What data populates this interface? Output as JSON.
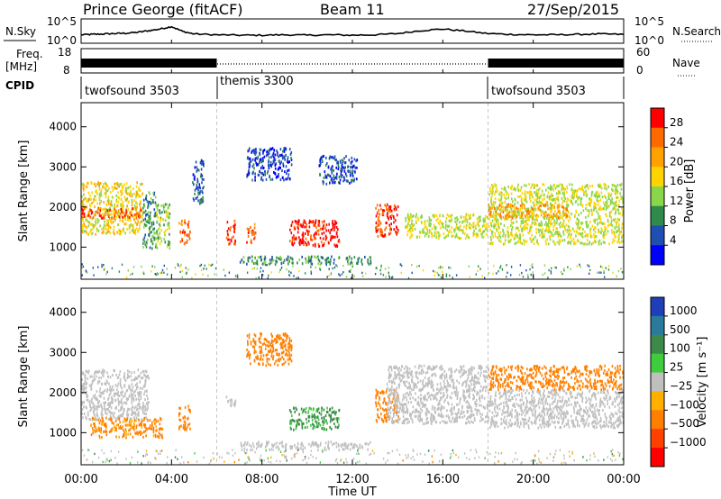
{
  "header": {
    "station": "Prince George (fitACF)",
    "beam": "Beam 11",
    "date": "27/Sep/2015"
  },
  "noise_panel": {
    "left_label": "N.Sky",
    "right_label": "N.Search",
    "left_ticks": [
      "10^5",
      "10^0"
    ],
    "right_ticks": [
      "10^5",
      "10^0"
    ]
  },
  "freq_panel": {
    "left_label_1": "Freq.",
    "left_label_2": "[MHz]",
    "left_ticks": [
      "18",
      "8"
    ],
    "right_label": "Nave",
    "right_ticks": [
      "60",
      "0"
    ]
  },
  "cpid_panel": {
    "label": "CPID",
    "segments": [
      {
        "name": "twofsound 3503",
        "start": 0,
        "end": 6
      },
      {
        "name": "themis 3300",
        "start": 6,
        "end": 18
      },
      {
        "name": "twofsound 3503",
        "start": 18,
        "end": 24
      }
    ]
  },
  "power_colorbar": {
    "label": "Power [dB]",
    "ticks": [
      "28",
      "24",
      "20",
      "16",
      "12",
      "8",
      "4"
    ],
    "colors": [
      "#ff0000",
      "#ff6a00",
      "#ffa200",
      "#ffd400",
      "#8ad64a",
      "#2f8a4e",
      "#1f4fb0",
      "#0000ff"
    ]
  },
  "velocity_colorbar": {
    "label": "Velocity [m s⁻¹]",
    "ticks": [
      "1000",
      "500",
      "100",
      "25",
      "−25",
      "−100",
      "−500",
      "−1000"
    ],
    "colors": [
      "#1f3fb8",
      "#2a7a9c",
      "#3c8a4a",
      "#3fcc3f",
      "#bfbfbf",
      "#ffb000",
      "#ff8000",
      "#ff4000",
      "#ff0000"
    ]
  },
  "time_ticks": [
    "00:00",
    "04:00",
    "08:00",
    "12:00",
    "16:00",
    "20:00",
    "00:00"
  ],
  "x_axis_title": "Time UT",
  "colors": {
    "ground_scatter": "#c0c0c0",
    "mode_divider": "#c8c8c8"
  },
  "chart_data": [
    {
      "type": "line",
      "panel": "noise",
      "description_series": "N.Sky",
      "x_unit": "hours UT",
      "x": [
        0,
        0.5,
        1,
        1.5,
        2,
        2.5,
        3,
        3.5,
        4,
        4.5,
        5,
        6,
        7,
        8,
        9,
        10,
        11,
        12,
        13,
        14,
        15,
        16,
        17,
        18,
        19,
        20,
        21,
        22,
        23,
        24
      ],
      "series": [
        {
          "values_log10": [
            1.6,
            1.7,
            1.8,
            1.9,
            2.0,
            2.2,
            2.6,
            3.0,
            3.6,
            2.4,
            1.8,
            1.6,
            1.5,
            1.5,
            1.6,
            1.5,
            1.6,
            1.5,
            1.6,
            1.9,
            2.6,
            3.0,
            2.5,
            1.9,
            1.7,
            1.6,
            1.6,
            1.7,
            1.8,
            1.7
          ]
        }
      ],
      "ylim_log10": [
        0,
        5
      ]
    },
    {
      "type": "line",
      "panel": "frequency",
      "series": [
        {
          "name": "Freq.",
          "x": [
            0,
            6,
            18,
            24
          ],
          "values": [
            11.5,
            11.5,
            11.5,
            11.5
          ],
          "note": "rapid alternation in twofsound mode"
        },
        {
          "name": "Nave",
          "x": [
            0,
            6,
            6,
            18,
            18,
            24
          ],
          "values": [
            45,
            45,
            5,
            5,
            45,
            45
          ]
        }
      ],
      "ylim_left": [
        8,
        18
      ],
      "ylim_right": [
        0,
        60
      ]
    },
    {
      "type": "heatmap",
      "panel": "power",
      "xlabel": "",
      "ylabel": "Slant Range [km]",
      "xlim": [
        0,
        24
      ],
      "ylim": [
        200,
        4600
      ],
      "yticks": [
        1000,
        2000,
        3000,
        4000
      ],
      "cbar_label": "Power [dB]",
      "zlim": [
        0,
        32
      ],
      "regions": [
        {
          "t0": 0.0,
          "t1": 2.7,
          "r0": 1350,
          "r1": 2650,
          "z": 18
        },
        {
          "t0": 0.0,
          "t1": 2.7,
          "r0": 1750,
          "r1": 2000,
          "z": 27
        },
        {
          "t0": 2.7,
          "t1": 3.3,
          "r0": 1000,
          "r1": 2400,
          "z": 10
        },
        {
          "t0": 3.3,
          "t1": 3.9,
          "r0": 1000,
          "r1": 2100,
          "z": 14
        },
        {
          "t0": 4.3,
          "t1": 4.8,
          "r0": 1100,
          "r1": 1700,
          "z": 25
        },
        {
          "t0": 4.9,
          "t1": 5.4,
          "r0": 2100,
          "r1": 3200,
          "z": 6
        },
        {
          "t0": 6.4,
          "t1": 6.8,
          "r0": 1100,
          "r1": 1700,
          "z": 28
        },
        {
          "t0": 7.3,
          "t1": 7.7,
          "r0": 1100,
          "r1": 1600,
          "z": 26
        },
        {
          "t0": 9.2,
          "t1": 11.4,
          "r0": 1050,
          "r1": 1700,
          "z": 30
        },
        {
          "t0": 7.0,
          "t1": 12.8,
          "r0": 600,
          "r1": 800,
          "z": 10
        },
        {
          "t0": 13.0,
          "t1": 14.0,
          "r0": 1300,
          "r1": 2100,
          "z": 28
        },
        {
          "t0": 14.3,
          "t1": 18.0,
          "r0": 1250,
          "r1": 1850,
          "z": 16
        },
        {
          "t0": 18.0,
          "t1": 24.0,
          "r0": 1100,
          "r1": 2600,
          "z": 16
        },
        {
          "t0": 18.0,
          "t1": 21.5,
          "r0": 1750,
          "r1": 2100,
          "z": 23
        },
        {
          "t0": 7.3,
          "t1": 9.3,
          "r0": 2700,
          "r1": 3500,
          "z": 5
        },
        {
          "t0": 10.5,
          "t1": 12.2,
          "r0": 2600,
          "r1": 3300,
          "z": 6
        }
      ]
    },
    {
      "type": "heatmap",
      "panel": "velocity",
      "xlabel": "Time UT",
      "ylabel": "Slant Range [km]",
      "xlim": [
        0,
        24
      ],
      "ylim": [
        200,
        4600
      ],
      "yticks": [
        1000,
        2000,
        3000,
        4000
      ],
      "cbar_label": "Velocity [m s⁻¹]",
      "zlim": [
        -1000,
        1000
      ],
      "regions": [
        {
          "t0": 0.0,
          "t1": 3.0,
          "r0": 1350,
          "r1": 2600,
          "v": 0,
          "gs": true
        },
        {
          "t0": 0.4,
          "t1": 3.6,
          "r0": 900,
          "r1": 1400,
          "v": -150
        },
        {
          "t0": 4.3,
          "t1": 4.8,
          "r0": 1100,
          "r1": 1700,
          "v": -300
        },
        {
          "t0": 6.4,
          "t1": 6.8,
          "r0": 1700,
          "r1": 2000,
          "v": 0,
          "gs": true
        },
        {
          "t0": 9.2,
          "t1": 11.4,
          "r0": 1100,
          "r1": 1650,
          "v": 150
        },
        {
          "t0": 7.0,
          "t1": 12.8,
          "r0": 600,
          "r1": 800,
          "v": 0,
          "gs": true
        },
        {
          "t0": 13.0,
          "t1": 14.0,
          "r0": 1300,
          "r1": 2100,
          "v": -400
        },
        {
          "t0": 13.5,
          "t1": 18.0,
          "r0": 1250,
          "r1": 2700,
          "v": 0,
          "gs": true
        },
        {
          "t0": 18.0,
          "t1": 24.0,
          "r0": 1150,
          "r1": 2100,
          "v": 0,
          "gs": true
        },
        {
          "t0": 18.0,
          "t1": 24.0,
          "r0": 2100,
          "r1": 2700,
          "v": -200
        },
        {
          "t0": 7.3,
          "t1": 9.3,
          "r0": 2700,
          "r1": 3500,
          "v": -200
        }
      ]
    }
  ]
}
